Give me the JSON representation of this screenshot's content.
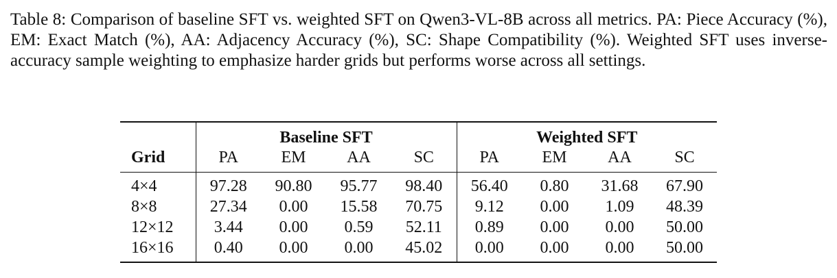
{
  "caption": "Table 8: Comparison of baseline SFT vs. weighted SFT on Qwen3-VL-8B across all metrics. PA: Piece Accuracy (%), EM: Exact Match (%), AA: Adjacency Accuracy (%), SC: Shape Compatibility (%). Weighted SFT uses inverse-accuracy sample weighting to emphasize harder grids but performs worse across all settings.",
  "table": {
    "groups": [
      "Baseline SFT",
      "Weighted SFT"
    ],
    "grid_header": "Grid",
    "metrics": [
      "PA",
      "EM",
      "AA",
      "SC"
    ],
    "rows": [
      {
        "grid": "4×4",
        "baseline": [
          "97.28",
          "90.80",
          "95.77",
          "98.40"
        ],
        "weighted": [
          "56.40",
          "0.80",
          "31.68",
          "67.90"
        ]
      },
      {
        "grid": "8×8",
        "baseline": [
          "27.34",
          "0.00",
          "15.58",
          "70.75"
        ],
        "weighted": [
          "9.12",
          "0.00",
          "1.09",
          "48.39"
        ]
      },
      {
        "grid": "12×12",
        "baseline": [
          "3.44",
          "0.00",
          "0.59",
          "52.11"
        ],
        "weighted": [
          "0.89",
          "0.00",
          "0.00",
          "50.00"
        ]
      },
      {
        "grid": "16×16",
        "baseline": [
          "0.40",
          "0.00",
          "0.00",
          "45.02"
        ],
        "weighted": [
          "0.00",
          "0.00",
          "0.00",
          "50.00"
        ]
      }
    ]
  }
}
